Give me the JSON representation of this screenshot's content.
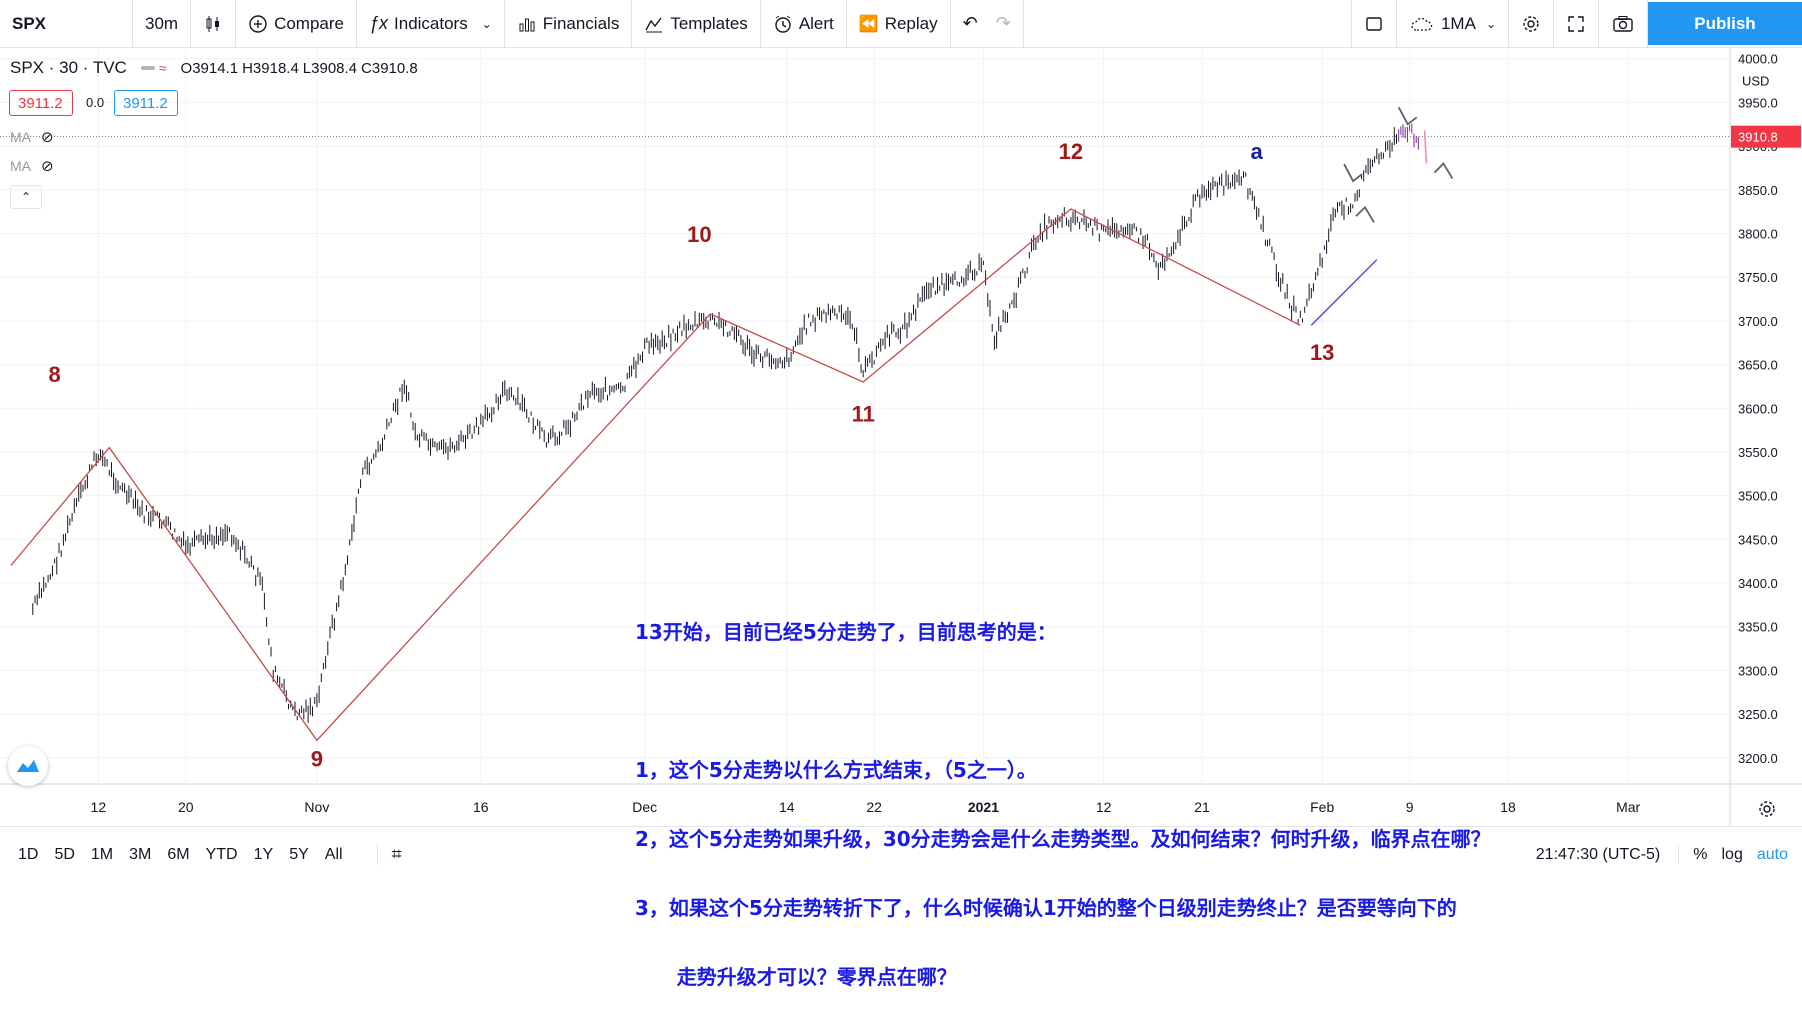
{
  "toolbar": {
    "symbol": "SPX",
    "interval": "30m",
    "compare": "Compare",
    "indicators": "Indicators",
    "financials": "Financials",
    "templates": "Templates",
    "alert": "Alert",
    "replay": "Replay",
    "layout_name": "1MA",
    "publish": "Publish"
  },
  "legend": {
    "title": "SPX · 30 · TVC",
    "o": "O3914.1",
    "h": "H3918.4",
    "l": "L3908.4",
    "c": "C3910.8",
    "sell_price": "3911.2",
    "spread": "0.0",
    "buy_price": "3911.2",
    "ma1": "MA",
    "ma2": "MA"
  },
  "chart_data": {
    "type": "line",
    "symbol": "SPX",
    "timeframe": "30m",
    "y_axis_unit": "USD",
    "ylim": [
      3170,
      4010
    ],
    "y_ticks": [
      3200,
      3250,
      3300,
      3350,
      3400,
      3450,
      3500,
      3550,
      3600,
      3650,
      3700,
      3750,
      3800,
      3850,
      3900,
      3950,
      4000
    ],
    "y_tick_labels": [
      "3200.0",
      "3250.0",
      "3300.0",
      "3350.0",
      "3400.0",
      "3450.0",
      "3500.0",
      "3550.0",
      "3600.0",
      "3650.0",
      "3700.0",
      "3750.0",
      "3800.0",
      "3850.0",
      "3900.0",
      "3950.0",
      "4000.0"
    ],
    "x_tick_labels": [
      "12",
      "20",
      "Nov",
      "16",
      "Dec",
      "14",
      "22",
      "2021",
      "12",
      "21",
      "Feb",
      "9",
      "18",
      "Mar"
    ],
    "x_tick_dates": [
      "2020-10-12",
      "2020-10-20",
      "2020-11-01",
      "2020-11-16",
      "2020-12-01",
      "2020-12-14",
      "2020-12-22",
      "2021-01-01",
      "2021-01-12",
      "2021-01-21",
      "2021-02-01",
      "2021-02-09",
      "2021-02-18",
      "2021-03-01"
    ],
    "last_price": 3910.8,
    "price_series": [
      [
        "2020-10-06",
        3370
      ],
      [
        "2020-10-08",
        3420
      ],
      [
        "2020-10-10",
        3490
      ],
      [
        "2020-10-12",
        3550
      ],
      [
        "2020-10-14",
        3510
      ],
      [
        "2020-10-16",
        3480
      ],
      [
        "2020-10-18",
        3470
      ],
      [
        "2020-10-20",
        3440
      ],
      [
        "2020-10-22",
        3450
      ],
      [
        "2020-10-24",
        3460
      ],
      [
        "2020-10-26",
        3420
      ],
      [
        "2020-10-27",
        3395
      ],
      [
        "2020-10-28",
        3300
      ],
      [
        "2020-10-30",
        3250
      ],
      [
        "2020-11-01",
        3260
      ],
      [
        "2020-11-02",
        3330
      ],
      [
        "2020-11-03",
        3380
      ],
      [
        "2020-11-04",
        3440
      ],
      [
        "2020-11-05",
        3520
      ],
      [
        "2020-11-07",
        3560
      ],
      [
        "2020-11-09",
        3630
      ],
      [
        "2020-11-10",
        3570
      ],
      [
        "2020-11-12",
        3550
      ],
      [
        "2020-11-14",
        3560
      ],
      [
        "2020-11-16",
        3580
      ],
      [
        "2020-11-18",
        3620
      ],
      [
        "2020-11-20",
        3600
      ],
      [
        "2020-11-22",
        3560
      ],
      [
        "2020-11-24",
        3580
      ],
      [
        "2020-11-26",
        3620
      ],
      [
        "2020-11-29",
        3620
      ],
      [
        "2020-12-01",
        3670
      ],
      [
        "2020-12-03",
        3680
      ],
      [
        "2020-12-05",
        3695
      ],
      [
        "2020-12-07",
        3700
      ],
      [
        "2020-12-09",
        3690
      ],
      [
        "2020-12-11",
        3660
      ],
      [
        "2020-12-14",
        3655
      ],
      [
        "2020-12-16",
        3700
      ],
      [
        "2020-12-18",
        3710
      ],
      [
        "2020-12-20",
        3700
      ],
      [
        "2020-12-21",
        3640
      ],
      [
        "2020-12-23",
        3680
      ],
      [
        "2020-12-25",
        3695
      ],
      [
        "2020-12-27",
        3740
      ],
      [
        "2020-12-29",
        3740
      ],
      [
        "2020-12-31",
        3760
      ],
      [
        "2021-01-01",
        3760
      ],
      [
        "2021-01-02",
        3680
      ],
      [
        "2021-01-04",
        3730
      ],
      [
        "2021-01-06",
        3800
      ],
      [
        "2021-01-08",
        3820
      ],
      [
        "2021-01-10",
        3815
      ],
      [
        "2021-01-12",
        3800
      ],
      [
        "2021-01-14",
        3810
      ],
      [
        "2021-01-16",
        3790
      ],
      [
        "2021-01-17",
        3760
      ],
      [
        "2021-01-19",
        3800
      ],
      [
        "2021-01-21",
        3850
      ],
      [
        "2021-01-23",
        3855
      ],
      [
        "2021-01-25",
        3860
      ],
      [
        "2021-01-27",
        3790
      ],
      [
        "2021-01-29",
        3720
      ],
      [
        "2021-01-30",
        3700
      ],
      [
        "2021-02-01",
        3770
      ],
      [
        "2021-02-02",
        3820
      ],
      [
        "2021-02-03",
        3830
      ],
      [
        "2021-02-04",
        3840
      ],
      [
        "2021-02-05",
        3870
      ],
      [
        "2021-02-06",
        3885
      ],
      [
        "2021-02-07",
        3900
      ],
      [
        "2021-02-08",
        3910
      ],
      [
        "2021-02-09",
        3915
      ],
      [
        "2021-02-10",
        3910
      ]
    ],
    "series": [
      {
        "name": "",
        "color": "#c94a4a",
        "points": [
          [
            "2020-10-04",
            3420
          ],
          [
            "2020-10-13",
            3555
          ],
          [
            "2020-11-01",
            3220
          ],
          [
            "2020-12-07",
            3708
          ],
          [
            "2020-12-21",
            3630
          ],
          [
            "2021-01-09",
            3828
          ],
          [
            "2021-01-30",
            3695
          ]
        ]
      }
    ],
    "trendline": {
      "color": "#3b40e0",
      "points": [
        [
          "2021-01-31",
          3695
        ],
        [
          "2021-02-06",
          3770
        ]
      ]
    },
    "wave_labels": [
      {
        "text": "8",
        "date": "2020-10-08",
        "price": 3630,
        "color": "#a01818"
      },
      {
        "text": "9",
        "date": "2020-11-01",
        "price": 3190,
        "color": "#a01818"
      },
      {
        "text": "10",
        "date": "2020-12-06",
        "price": 3790,
        "color": "#a01818"
      },
      {
        "text": "11",
        "date": "2020-12-21",
        "price": 3585,
        "color": "#a01818"
      },
      {
        "text": "12",
        "date": "2021-01-09",
        "price": 3885,
        "color": "#a01818"
      },
      {
        "text": "a",
        "date": "2021-01-26",
        "price": 3885,
        "color": "#1a1aa8"
      },
      {
        "text": "13",
        "date": "2021-02-01",
        "price": 3655,
        "color": "#a01818"
      }
    ],
    "annotation": {
      "color": "#1a1ae6",
      "lines": [
        "13开始，目前已经5分走势了，目前思考的是：",
        "",
        "1，这个5分走势以什么方式结束，（5之一）。",
        "2，这个5分走势如果升级，30分走势会是什么走势类型。及如何结束？何时升级，临界点在哪？",
        "3，如果这个5分走势转折下了，什么时候确认1开始的整个日级别走势终止？是否要等向下的",
        "      走势升级才可以？零界点在哪？"
      ]
    }
  },
  "bottom": {
    "ranges": [
      "1D",
      "5D",
      "1M",
      "3M",
      "6M",
      "YTD",
      "1Y",
      "5Y",
      "All"
    ],
    "clock": "21:47:30 (UTC-5)",
    "percent": "%",
    "log": "log",
    "auto": "auto"
  }
}
